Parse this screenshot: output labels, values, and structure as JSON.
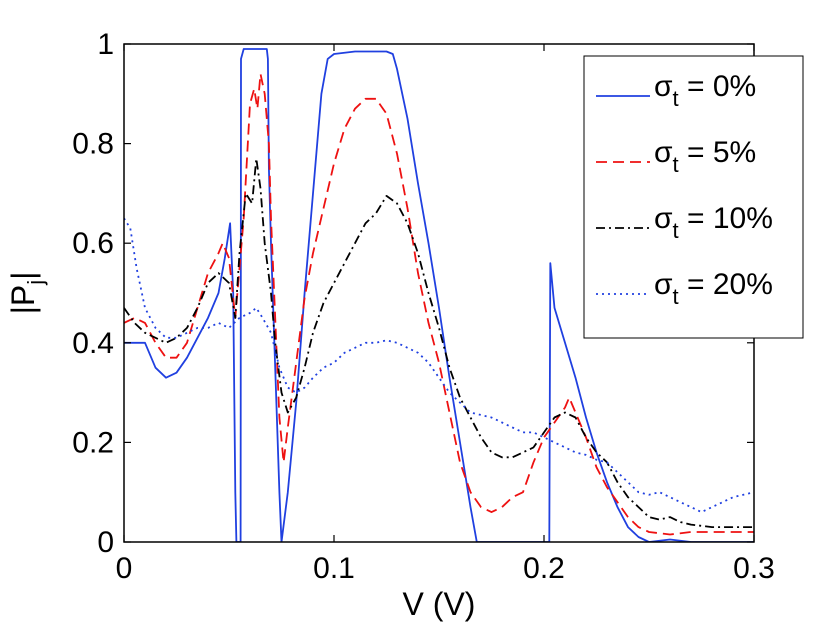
{
  "chart_data": {
    "type": "line",
    "title": "",
    "xlabel": "V (V)",
    "ylabel": "|P_j|",
    "ylabel_parts": {
      "main": "|P",
      "sub": "j",
      "end": "|"
    },
    "xlim": [
      0,
      0.3
    ],
    "ylim": [
      0,
      1
    ],
    "xticks": [
      0,
      0.1,
      0.2,
      0.3
    ],
    "xtick_labels": [
      "0",
      "0.1",
      "0.2",
      "0.3"
    ],
    "yticks": [
      0,
      0.2,
      0.4,
      0.6,
      0.8,
      1
    ],
    "ytick_labels": [
      "0",
      "0.2",
      "0.4",
      "0.6",
      "0.8",
      "1"
    ],
    "grid": false,
    "legend_position": "top-right",
    "series": [
      {
        "name": "σt = 0%",
        "label_sigma": "σ",
        "label_sub": "t",
        "label_rest": " = 0%",
        "color": "#2040e0",
        "dash": "solid",
        "points": [
          [
            0,
            0.4
          ],
          [
            0.005,
            0.4
          ],
          [
            0.01,
            0.4
          ],
          [
            0.015,
            0.35
          ],
          [
            0.02,
            0.33
          ],
          [
            0.025,
            0.34
          ],
          [
            0.03,
            0.37
          ],
          [
            0.035,
            0.41
          ],
          [
            0.04,
            0.45
          ],
          [
            0.045,
            0.5
          ],
          [
            0.048,
            0.57
          ],
          [
            0.0505,
            0.64
          ],
          [
            0.052,
            0.5
          ],
          [
            0.053,
            0.1
          ],
          [
            0.0535,
            0
          ],
          [
            0.0555,
            0
          ],
          [
            0.0557,
            0.97
          ],
          [
            0.057,
            0.99
          ],
          [
            0.06,
            0.99
          ],
          [
            0.065,
            0.99
          ],
          [
            0.068,
            0.99
          ],
          [
            0.0685,
            0.97
          ],
          [
            0.069,
            0.75
          ],
          [
            0.07,
            0.6
          ],
          [
            0.072,
            0.35
          ],
          [
            0.074,
            0.1
          ],
          [
            0.075,
            0
          ],
          [
            0.078,
            0.1
          ],
          [
            0.082,
            0.28
          ],
          [
            0.086,
            0.5
          ],
          [
            0.09,
            0.7
          ],
          [
            0.094,
            0.9
          ],
          [
            0.097,
            0.97
          ],
          [
            0.1,
            0.98
          ],
          [
            0.11,
            0.985
          ],
          [
            0.12,
            0.985
          ],
          [
            0.125,
            0.985
          ],
          [
            0.128,
            0.98
          ],
          [
            0.13,
            0.95
          ],
          [
            0.135,
            0.85
          ],
          [
            0.14,
            0.72
          ],
          [
            0.145,
            0.6
          ],
          [
            0.15,
            0.47
          ],
          [
            0.155,
            0.33
          ],
          [
            0.16,
            0.2
          ],
          [
            0.165,
            0.07
          ],
          [
            0.168,
            0
          ],
          [
            0.2,
            0
          ],
          [
            0.2025,
            0
          ],
          [
            0.203,
            0.56
          ],
          [
            0.205,
            0.47
          ],
          [
            0.21,
            0.4
          ],
          [
            0.215,
            0.33
          ],
          [
            0.22,
            0.25
          ],
          [
            0.225,
            0.18
          ],
          [
            0.23,
            0.12
          ],
          [
            0.235,
            0.07
          ],
          [
            0.24,
            0.03
          ],
          [
            0.245,
            0.01
          ],
          [
            0.25,
            0
          ],
          [
            0.26,
            0.005
          ],
          [
            0.27,
            0
          ],
          [
            0.3,
            0
          ]
        ]
      },
      {
        "name": "σt = 5%",
        "label_sigma": "σ",
        "label_sub": "t",
        "label_rest": " = 5%",
        "color": "#ee1111",
        "dash": "dashed",
        "points": [
          [
            0,
            0.44
          ],
          [
            0.005,
            0.45
          ],
          [
            0.01,
            0.44
          ],
          [
            0.015,
            0.4
          ],
          [
            0.02,
            0.37
          ],
          [
            0.025,
            0.37
          ],
          [
            0.03,
            0.4
          ],
          [
            0.035,
            0.47
          ],
          [
            0.04,
            0.54
          ],
          [
            0.045,
            0.58
          ],
          [
            0.047,
            0.6
          ],
          [
            0.05,
            0.57
          ],
          [
            0.053,
            0.45
          ],
          [
            0.055,
            0.55
          ],
          [
            0.057,
            0.65
          ],
          [
            0.06,
            0.88
          ],
          [
            0.062,
            0.91
          ],
          [
            0.0635,
            0.87
          ],
          [
            0.065,
            0.94
          ],
          [
            0.067,
            0.9
          ],
          [
            0.069,
            0.8
          ],
          [
            0.07,
            0.65
          ],
          [
            0.072,
            0.45
          ],
          [
            0.074,
            0.25
          ],
          [
            0.076,
            0.16
          ],
          [
            0.078,
            0.23
          ],
          [
            0.082,
            0.36
          ],
          [
            0.086,
            0.49
          ],
          [
            0.09,
            0.58
          ],
          [
            0.095,
            0.67
          ],
          [
            0.1,
            0.76
          ],
          [
            0.105,
            0.83
          ],
          [
            0.11,
            0.87
          ],
          [
            0.115,
            0.89
          ],
          [
            0.12,
            0.89
          ],
          [
            0.125,
            0.86
          ],
          [
            0.13,
            0.78
          ],
          [
            0.135,
            0.67
          ],
          [
            0.14,
            0.54
          ],
          [
            0.145,
            0.44
          ],
          [
            0.15,
            0.36
          ],
          [
            0.155,
            0.26
          ],
          [
            0.16,
            0.16
          ],
          [
            0.165,
            0.1
          ],
          [
            0.17,
            0.07
          ],
          [
            0.175,
            0.06
          ],
          [
            0.18,
            0.07
          ],
          [
            0.185,
            0.09
          ],
          [
            0.19,
            0.1
          ],
          [
            0.195,
            0.16
          ],
          [
            0.2,
            0.21
          ],
          [
            0.205,
            0.24
          ],
          [
            0.21,
            0.27
          ],
          [
            0.212,
            0.29
          ],
          [
            0.215,
            0.26
          ],
          [
            0.22,
            0.21
          ],
          [
            0.225,
            0.15
          ],
          [
            0.23,
            0.11
          ],
          [
            0.235,
            0.08
          ],
          [
            0.24,
            0.05
          ],
          [
            0.245,
            0.03
          ],
          [
            0.25,
            0.02
          ],
          [
            0.26,
            0.015
          ],
          [
            0.27,
            0.02
          ],
          [
            0.28,
            0.02
          ],
          [
            0.29,
            0.02
          ],
          [
            0.3,
            0.02
          ]
        ]
      },
      {
        "name": "σt = 10%",
        "label_sigma": "σ",
        "label_sub": "t",
        "label_rest": " = 10%",
        "color": "#000000",
        "dash": "dashdot",
        "points": [
          [
            0,
            0.47
          ],
          [
            0.005,
            0.44
          ],
          [
            0.01,
            0.42
          ],
          [
            0.015,
            0.41
          ],
          [
            0.02,
            0.4
          ],
          [
            0.025,
            0.41
          ],
          [
            0.03,
            0.43
          ],
          [
            0.035,
            0.47
          ],
          [
            0.04,
            0.52
          ],
          [
            0.045,
            0.54
          ],
          [
            0.05,
            0.52
          ],
          [
            0.053,
            0.45
          ],
          [
            0.055,
            0.58
          ],
          [
            0.058,
            0.7
          ],
          [
            0.061,
            0.68
          ],
          [
            0.063,
            0.77
          ],
          [
            0.065,
            0.71
          ],
          [
            0.067,
            0.6
          ],
          [
            0.07,
            0.5
          ],
          [
            0.072,
            0.4
          ],
          [
            0.075,
            0.3
          ],
          [
            0.078,
            0.26
          ],
          [
            0.082,
            0.29
          ],
          [
            0.086,
            0.35
          ],
          [
            0.09,
            0.42
          ],
          [
            0.095,
            0.48
          ],
          [
            0.1,
            0.52
          ],
          [
            0.105,
            0.56
          ],
          [
            0.11,
            0.6
          ],
          [
            0.115,
            0.64
          ],
          [
            0.12,
            0.66
          ],
          [
            0.125,
            0.695
          ],
          [
            0.13,
            0.68
          ],
          [
            0.135,
            0.64
          ],
          [
            0.14,
            0.58
          ],
          [
            0.145,
            0.5
          ],
          [
            0.15,
            0.43
          ],
          [
            0.155,
            0.35
          ],
          [
            0.16,
            0.29
          ],
          [
            0.165,
            0.25
          ],
          [
            0.17,
            0.21
          ],
          [
            0.175,
            0.18
          ],
          [
            0.18,
            0.17
          ],
          [
            0.185,
            0.17
          ],
          [
            0.19,
            0.18
          ],
          [
            0.195,
            0.19
          ],
          [
            0.2,
            0.22
          ],
          [
            0.205,
            0.25
          ],
          [
            0.21,
            0.26
          ],
          [
            0.215,
            0.25
          ],
          [
            0.22,
            0.21
          ],
          [
            0.225,
            0.18
          ],
          [
            0.23,
            0.16
          ],
          [
            0.235,
            0.12
          ],
          [
            0.24,
            0.09
          ],
          [
            0.245,
            0.07
          ],
          [
            0.25,
            0.05
          ],
          [
            0.255,
            0.045
          ],
          [
            0.26,
            0.05
          ],
          [
            0.265,
            0.04
          ],
          [
            0.27,
            0.035
          ],
          [
            0.28,
            0.03
          ],
          [
            0.29,
            0.03
          ],
          [
            0.3,
            0.03
          ]
        ]
      },
      {
        "name": "σt = 20%",
        "label_sigma": "σ",
        "label_sub": "t",
        "label_rest": " = 20%",
        "color": "#2040e0",
        "dash": "dotted",
        "points": [
          [
            0,
            0.65
          ],
          [
            0.003,
            0.63
          ],
          [
            0.006,
            0.55
          ],
          [
            0.01,
            0.47
          ],
          [
            0.015,
            0.43
          ],
          [
            0.02,
            0.41
          ],
          [
            0.025,
            0.41
          ],
          [
            0.03,
            0.42
          ],
          [
            0.035,
            0.43
          ],
          [
            0.04,
            0.43
          ],
          [
            0.045,
            0.44
          ],
          [
            0.05,
            0.43
          ],
          [
            0.055,
            0.45
          ],
          [
            0.06,
            0.46
          ],
          [
            0.063,
            0.47
          ],
          [
            0.066,
            0.45
          ],
          [
            0.07,
            0.42
          ],
          [
            0.074,
            0.35
          ],
          [
            0.078,
            0.31
          ],
          [
            0.082,
            0.3
          ],
          [
            0.086,
            0.31
          ],
          [
            0.09,
            0.33
          ],
          [
            0.095,
            0.35
          ],
          [
            0.1,
            0.36
          ],
          [
            0.105,
            0.38
          ],
          [
            0.11,
            0.39
          ],
          [
            0.115,
            0.4
          ],
          [
            0.12,
            0.4
          ],
          [
            0.125,
            0.405
          ],
          [
            0.13,
            0.4
          ],
          [
            0.135,
            0.39
          ],
          [
            0.14,
            0.38
          ],
          [
            0.145,
            0.36
          ],
          [
            0.15,
            0.33
          ],
          [
            0.155,
            0.3
          ],
          [
            0.16,
            0.28
          ],
          [
            0.165,
            0.26
          ],
          [
            0.17,
            0.255
          ],
          [
            0.175,
            0.25
          ],
          [
            0.18,
            0.24
          ],
          [
            0.185,
            0.23
          ],
          [
            0.19,
            0.22
          ],
          [
            0.195,
            0.22
          ],
          [
            0.2,
            0.21
          ],
          [
            0.205,
            0.2
          ],
          [
            0.21,
            0.19
          ],
          [
            0.215,
            0.18
          ],
          [
            0.22,
            0.175
          ],
          [
            0.225,
            0.165
          ],
          [
            0.23,
            0.16
          ],
          [
            0.235,
            0.14
          ],
          [
            0.24,
            0.12
          ],
          [
            0.245,
            0.1
          ],
          [
            0.25,
            0.095
          ],
          [
            0.255,
            0.1
          ],
          [
            0.26,
            0.09
          ],
          [
            0.265,
            0.08
          ],
          [
            0.27,
            0.07
          ],
          [
            0.275,
            0.06
          ],
          [
            0.28,
            0.07
          ],
          [
            0.285,
            0.08
          ],
          [
            0.29,
            0.09
          ],
          [
            0.295,
            0.095
          ],
          [
            0.3,
            0.1
          ]
        ]
      }
    ]
  }
}
